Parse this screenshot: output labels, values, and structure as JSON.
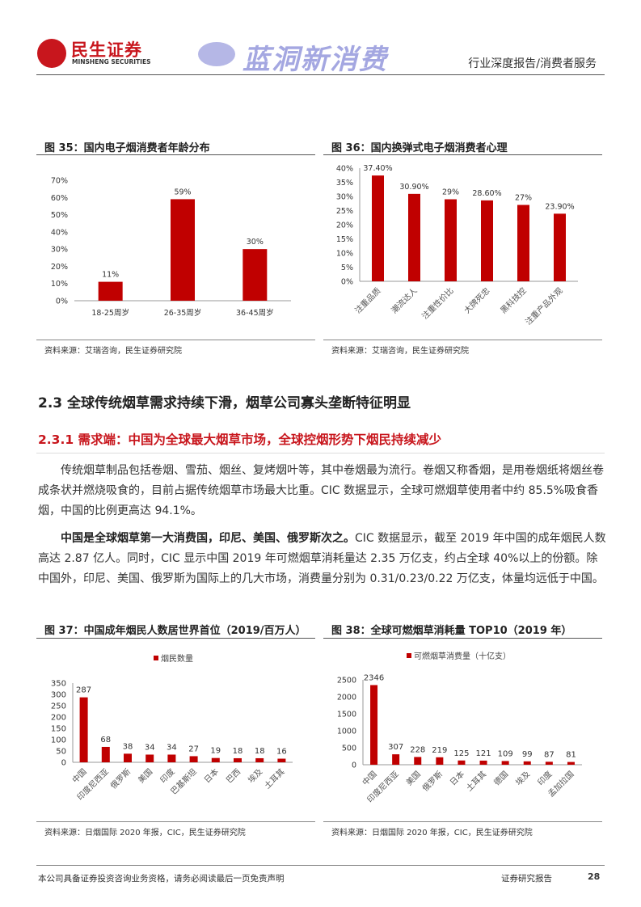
{
  "header": {
    "logo_cn": "民生证券",
    "logo_en": "MINSHENG SECURITIES",
    "category": "行业深度报告/消费者服务"
  },
  "figures": {
    "fig35": {
      "title": "图 35：国内电子烟消费者年龄分布",
      "source": "资料来源：艾瑞咨询，民生证券研究院"
    },
    "fig36": {
      "title": "图 36：国内换弹式电子烟消费者心理",
      "source": "资料来源：艾瑞咨询，民生证券研究院"
    },
    "fig37": {
      "title": "图 37：中国成年烟民人数居世界首位（2019/百万人）",
      "source": "资料来源：日烟国际 2020 年报，CIC，民生证券研究院"
    },
    "fig38": {
      "title": "图 38：全球可燃烟草消耗量 TOP10（2019 年）",
      "source": "资料来源：日烟国际 2020 年报，CIC，民生证券研究院"
    }
  },
  "section": {
    "heading": "2.3 全球传统烟草需求持续下滑，烟草公司寡头垄断特征明显",
    "subheading": "2.3.1 需求端：中国为全球最大烟草市场，全球控烟形势下烟民持续减少",
    "para1": "传统烟草制品包括卷烟、雪茄、烟丝、复烤烟叶等，其中卷烟最为流行。卷烟又称香烟，是用卷烟纸将烟丝卷成条状并燃烧吸食的，目前占据传统烟草市场最大比重。CIC 数据显示，全球可燃烟草使用者中约 85.5%吸食香烟，中国的比例更高达 94.1%。",
    "para2_bold": "中国是全球烟草第一大消费国，印尼、美国、俄罗斯次之。",
    "para2_rest": "CIC 数据显示，截至 2019 年中国的成年烟民人数高达 2.87 亿人。同时，CIC 显示中国 2019 年可燃烟草消耗量达 2.35 万亿支，约占全球  40%以上的份额。除中国外，印尼、美国、俄罗斯为国际上的几大市场，消费量分别为 0.31/0.23/0.22 万亿支，体量均远低于中国。"
  },
  "watermark": "蓝洞新消费",
  "footer": {
    "disclaimer": "本公司具备证券投资咨询业务资格，请务必阅读最后一页免责声明",
    "label": "证券研究报告",
    "page": "28"
  },
  "colors": {
    "bar": "#c00000",
    "brand": "#c8161d"
  },
  "chart_data": [
    {
      "id": "fig35",
      "type": "bar",
      "categories": [
        "18-25周岁",
        "26-35周岁",
        "36-45周岁"
      ],
      "values": [
        11,
        59,
        30
      ],
      "data_labels": [
        "11%",
        "59%",
        "30%"
      ],
      "yticks": [
        "0%",
        "10%",
        "20%",
        "30%",
        "40%",
        "50%",
        "60%",
        "70%"
      ],
      "ylim": [
        0,
        70
      ],
      "grid": false,
      "legend": null
    },
    {
      "id": "fig36",
      "type": "bar",
      "categories": [
        "注重品质",
        "潮流达人",
        "注重性价比",
        "大牌死忠",
        "黑科技控",
        "注重产品外观"
      ],
      "values": [
        37.4,
        30.9,
        29,
        28.6,
        27,
        23.9
      ],
      "data_labels": [
        "37.40%",
        "30.90%",
        "29%",
        "28.60%",
        "27%",
        "23.90%"
      ],
      "yticks": [
        "0%",
        "5%",
        "10%",
        "15%",
        "20%",
        "25%",
        "30%",
        "35%",
        "40%"
      ],
      "ylim": [
        0,
        40
      ],
      "grid": false,
      "legend": null
    },
    {
      "id": "fig37",
      "type": "bar",
      "categories": [
        "中国",
        "印度尼西亚",
        "俄罗斯",
        "美国",
        "印度",
        "巴基斯坦",
        "日本",
        "巴西",
        "埃及",
        "土耳其"
      ],
      "series": [
        {
          "name": "烟民数量",
          "values": [
            287,
            68,
            38,
            34,
            34,
            27,
            19,
            18,
            18,
            16
          ]
        }
      ],
      "yticks": [
        "0",
        "50",
        "100",
        "150",
        "200",
        "250",
        "300",
        "350"
      ],
      "ylim": [
        0,
        350
      ],
      "grid": false,
      "legend": "top"
    },
    {
      "id": "fig38",
      "type": "bar",
      "categories": [
        "中国",
        "印度尼西亚",
        "美国",
        "俄罗斯",
        "日本",
        "土耳其",
        "德国",
        "埃及",
        "印度",
        "孟加拉国"
      ],
      "series": [
        {
          "name": "可燃烟草消费量（十亿支）",
          "values": [
            2346,
            307,
            228,
            219,
            125,
            121,
            109,
            99,
            87,
            81
          ]
        }
      ],
      "yticks": [
        "0",
        "500",
        "1000",
        "1500",
        "2000",
        "2500"
      ],
      "ylim": [
        0,
        2500
      ],
      "grid": false,
      "legend": "top"
    }
  ]
}
